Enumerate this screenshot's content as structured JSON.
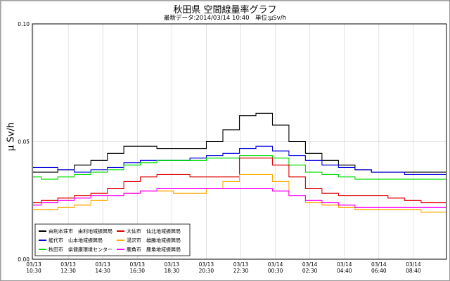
{
  "chart_data": {
    "type": "line",
    "title": "秋田県 空間線量率グラフ",
    "subtitle": "最新データ:2014/03/14 10:40　単位:μSv/h",
    "ylabel": "μ Sv/h",
    "ylim": [
      0.0,
      0.1
    ],
    "yticks": [
      "0.00",
      "0.05",
      "0.10"
    ],
    "x_ticks": [
      {
        "date": "03/13",
        "time": "10:30"
      },
      {
        "date": "03/13",
        "time": "12:30"
      },
      {
        "date": "03/13",
        "time": "14:30"
      },
      {
        "date": "03/13",
        "time": "16:30"
      },
      {
        "date": "03/13",
        "time": "18:30"
      },
      {
        "date": "03/13",
        "time": "20:30"
      },
      {
        "date": "03/13",
        "time": "22:30"
      },
      {
        "date": "03/14",
        "time": "00:30"
      },
      {
        "date": "03/14",
        "time": "02:30"
      },
      {
        "date": "03/14",
        "time": "04:40"
      },
      {
        "date": "03/14",
        "time": "06:40"
      },
      {
        "date": "03/14",
        "time": "08:40"
      }
    ],
    "grid": "on",
    "legend_position": "bottom-left",
    "series": [
      {
        "name": "由利本荘市　由利地域振興局",
        "color": "#000000",
        "values": [
          0.037,
          0.037,
          0.038,
          0.04,
          0.042,
          0.045,
          0.048,
          0.048,
          0.047,
          0.047,
          0.047,
          0.05,
          0.055,
          0.061,
          0.062,
          0.057,
          0.05,
          0.045,
          0.042,
          0.04,
          0.038,
          0.037,
          0.037,
          0.037,
          0.037,
          0.037
        ]
      },
      {
        "name": "能代市　山本地域振興局",
        "color": "#0000dd",
        "values": [
          0.039,
          0.039,
          0.038,
          0.037,
          0.038,
          0.039,
          0.041,
          0.042,
          0.042,
          0.042,
          0.043,
          0.044,
          0.045,
          0.047,
          0.048,
          0.046,
          0.044,
          0.042,
          0.04,
          0.039,
          0.038,
          0.037,
          0.037,
          0.036,
          0.036,
          0.036
        ]
      },
      {
        "name": "秋田市　県健康環境センター",
        "color": "#00dd00",
        "values": [
          0.035,
          0.034,
          0.035,
          0.036,
          0.037,
          0.038,
          0.04,
          0.041,
          0.042,
          0.042,
          0.042,
          0.043,
          0.043,
          0.044,
          0.044,
          0.043,
          0.04,
          0.037,
          0.036,
          0.035,
          0.034,
          0.034,
          0.034,
          0.034,
          0.034,
          0.034
        ]
      },
      {
        "name": "大仙市　仙北地域振興局",
        "color": "#dd0000",
        "values": [
          0.024,
          0.025,
          0.026,
          0.027,
          0.028,
          0.03,
          0.033,
          0.035,
          0.036,
          0.036,
          0.035,
          0.035,
          0.035,
          0.043,
          0.043,
          0.04,
          0.035,
          0.03,
          0.028,
          0.027,
          0.027,
          0.027,
          0.026,
          0.025,
          0.024,
          0.024
        ]
      },
      {
        "name": "湯沢市　雄勝地域振興局",
        "color": "#ffaa00",
        "values": [
          0.021,
          0.021,
          0.022,
          0.023,
          0.025,
          0.027,
          0.028,
          0.029,
          0.029,
          0.028,
          0.028,
          0.03,
          0.033,
          0.036,
          0.036,
          0.033,
          0.027,
          0.024,
          0.023,
          0.022,
          0.021,
          0.021,
          0.021,
          0.021,
          0.02,
          0.02
        ]
      },
      {
        "name": "鹿角市　鹿角地域振興局",
        "color": "#ff00ff",
        "values": [
          0.023,
          0.024,
          0.025,
          0.026,
          0.027,
          0.027,
          0.028,
          0.029,
          0.03,
          0.03,
          0.03,
          0.03,
          0.03,
          0.03,
          0.03,
          0.029,
          0.027,
          0.025,
          0.024,
          0.023,
          0.022,
          0.022,
          0.022,
          0.022,
          0.022,
          0.022
        ]
      }
    ]
  }
}
